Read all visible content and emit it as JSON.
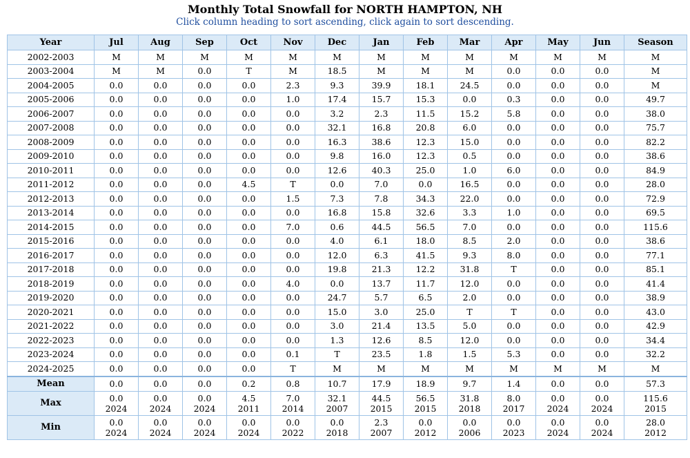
{
  "title": "Monthly Total Snowfall for NORTH HAMPTON, NH",
  "subtitle": "Click column heading to sort ascending, click again to sort descending.",
  "columns": [
    "Year",
    "Jul",
    "Aug",
    "Sep",
    "Oct",
    "Nov",
    "Dec",
    "Jan",
    "Feb",
    "Mar",
    "Apr",
    "May",
    "Jun",
    "Season"
  ],
  "rows": [
    [
      "2002-2003",
      "M",
      "M",
      "M",
      "M",
      "M",
      "M",
      "M",
      "M",
      "M",
      "M",
      "M",
      "M",
      "M"
    ],
    [
      "2003-2004",
      "M",
      "M",
      "0.0",
      "T",
      "M",
      "18.5",
      "M",
      "M",
      "M",
      "0.0",
      "0.0",
      "0.0",
      "M"
    ],
    [
      "2004-2005",
      "0.0",
      "0.0",
      "0.0",
      "0.0",
      "2.3",
      "9.3",
      "39.9",
      "18.1",
      "24.5",
      "0.0",
      "0.0",
      "0.0",
      "M"
    ],
    [
      "2005-2006",
      "0.0",
      "0.0",
      "0.0",
      "0.0",
      "1.0",
      "17.4",
      "15.7",
      "15.3",
      "0.0",
      "0.3",
      "0.0",
      "0.0",
      "49.7"
    ],
    [
      "2006-2007",
      "0.0",
      "0.0",
      "0.0",
      "0.0",
      "0.0",
      "3.2",
      "2.3",
      "11.5",
      "15.2",
      "5.8",
      "0.0",
      "0.0",
      "38.0"
    ],
    [
      "2007-2008",
      "0.0",
      "0.0",
      "0.0",
      "0.0",
      "0.0",
      "32.1",
      "16.8",
      "20.8",
      "6.0",
      "0.0",
      "0.0",
      "0.0",
      "75.7"
    ],
    [
      "2008-2009",
      "0.0",
      "0.0",
      "0.0",
      "0.0",
      "0.0",
      "16.3",
      "38.6",
      "12.3",
      "15.0",
      "0.0",
      "0.0",
      "0.0",
      "82.2"
    ],
    [
      "2009-2010",
      "0.0",
      "0.0",
      "0.0",
      "0.0",
      "0.0",
      "9.8",
      "16.0",
      "12.3",
      "0.5",
      "0.0",
      "0.0",
      "0.0",
      "38.6"
    ],
    [
      "2010-2011",
      "0.0",
      "0.0",
      "0.0",
      "0.0",
      "0.0",
      "12.6",
      "40.3",
      "25.0",
      "1.0",
      "6.0",
      "0.0",
      "0.0",
      "84.9"
    ],
    [
      "2011-2012",
      "0.0",
      "0.0",
      "0.0",
      "4.5",
      "T",
      "0.0",
      "7.0",
      "0.0",
      "16.5",
      "0.0",
      "0.0",
      "0.0",
      "28.0"
    ],
    [
      "2012-2013",
      "0.0",
      "0.0",
      "0.0",
      "0.0",
      "1.5",
      "7.3",
      "7.8",
      "34.3",
      "22.0",
      "0.0",
      "0.0",
      "0.0",
      "72.9"
    ],
    [
      "2013-2014",
      "0.0",
      "0.0",
      "0.0",
      "0.0",
      "0.0",
      "16.8",
      "15.8",
      "32.6",
      "3.3",
      "1.0",
      "0.0",
      "0.0",
      "69.5"
    ],
    [
      "2014-2015",
      "0.0",
      "0.0",
      "0.0",
      "0.0",
      "7.0",
      "0.6",
      "44.5",
      "56.5",
      "7.0",
      "0.0",
      "0.0",
      "0.0",
      "115.6"
    ],
    [
      "2015-2016",
      "0.0",
      "0.0",
      "0.0",
      "0.0",
      "0.0",
      "4.0",
      "6.1",
      "18.0",
      "8.5",
      "2.0",
      "0.0",
      "0.0",
      "38.6"
    ],
    [
      "2016-2017",
      "0.0",
      "0.0",
      "0.0",
      "0.0",
      "0.0",
      "12.0",
      "6.3",
      "41.5",
      "9.3",
      "8.0",
      "0.0",
      "0.0",
      "77.1"
    ],
    [
      "2017-2018",
      "0.0",
      "0.0",
      "0.0",
      "0.0",
      "0.0",
      "19.8",
      "21.3",
      "12.2",
      "31.8",
      "T",
      "0.0",
      "0.0",
      "85.1"
    ],
    [
      "2018-2019",
      "0.0",
      "0.0",
      "0.0",
      "0.0",
      "4.0",
      "0.0",
      "13.7",
      "11.7",
      "12.0",
      "0.0",
      "0.0",
      "0.0",
      "41.4"
    ],
    [
      "2019-2020",
      "0.0",
      "0.0",
      "0.0",
      "0.0",
      "0.0",
      "24.7",
      "5.7",
      "6.5",
      "2.0",
      "0.0",
      "0.0",
      "0.0",
      "38.9"
    ],
    [
      "2020-2021",
      "0.0",
      "0.0",
      "0.0",
      "0.0",
      "0.0",
      "15.0",
      "3.0",
      "25.0",
      "T",
      "T",
      "0.0",
      "0.0",
      "43.0"
    ],
    [
      "2021-2022",
      "0.0",
      "0.0",
      "0.0",
      "0.0",
      "0.0",
      "3.0",
      "21.4",
      "13.5",
      "5.0",
      "0.0",
      "0.0",
      "0.0",
      "42.9"
    ],
    [
      "2022-2023",
      "0.0",
      "0.0",
      "0.0",
      "0.0",
      "0.0",
      "1.3",
      "12.6",
      "8.5",
      "12.0",
      "0.0",
      "0.0",
      "0.0",
      "34.4"
    ],
    [
      "2023-2024",
      "0.0",
      "0.0",
      "0.0",
      "0.0",
      "0.1",
      "T",
      "23.5",
      "1.8",
      "1.5",
      "5.3",
      "0.0",
      "0.0",
      "32.2"
    ],
    [
      "2024-2025",
      "0.0",
      "0.0",
      "0.0",
      "0.0",
      "T",
      "M",
      "M",
      "M",
      "M",
      "M",
      "M",
      "M",
      "M"
    ]
  ],
  "summary": {
    "mean": {
      "label": "Mean",
      "values": [
        "0.0",
        "0.0",
        "0.0",
        "0.2",
        "0.8",
        "10.7",
        "17.9",
        "18.9",
        "9.7",
        "1.4",
        "0.0",
        "0.0",
        "57.3"
      ]
    },
    "max": {
      "label": "Max",
      "values": [
        "0.0",
        "0.0",
        "0.0",
        "4.5",
        "7.0",
        "32.1",
        "44.5",
        "56.5",
        "31.8",
        "8.0",
        "0.0",
        "0.0",
        "115.6"
      ],
      "years": [
        "2024",
        "2024",
        "2024",
        "2011",
        "2014",
        "2007",
        "2015",
        "2015",
        "2018",
        "2017",
        "2024",
        "2024",
        "2015"
      ]
    },
    "min": {
      "label": "Min",
      "values": [
        "0.0",
        "0.0",
        "0.0",
        "0.0",
        "0.0",
        "0.0",
        "2.3",
        "0.0",
        "0.0",
        "0.0",
        "0.0",
        "0.0",
        "28.0"
      ],
      "years": [
        "2024",
        "2024",
        "2024",
        "2024",
        "2022",
        "2018",
        "2007",
        "2012",
        "2006",
        "2023",
        "2024",
        "2024",
        "2012"
      ]
    }
  },
  "colors": {
    "header_bg": "#dbeaf7",
    "border": "#9fc3e6",
    "subtitle": "#1f4e9e"
  }
}
